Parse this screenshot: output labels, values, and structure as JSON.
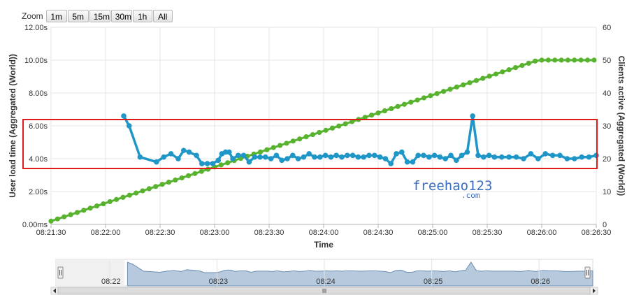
{
  "zoom": {
    "label": "Zoom",
    "buttons": [
      "1m",
      "5m",
      "15m",
      "30m",
      "1h",
      "All"
    ]
  },
  "watermark": {
    "line1": "freehao123",
    "line2": ".com"
  },
  "colors": {
    "load_time": "#1f96c8",
    "clients": "#57b22d",
    "highlight": "#e01b1b",
    "navigator_fill": "#b7c9dc",
    "navigator_line": "#6f8fb3"
  },
  "chart_data": {
    "type": "line",
    "xlabel": "Time",
    "x_ticks": [
      "08:21:30",
      "08:22:00",
      "08:22:30",
      "08:23:00",
      "08:23:30",
      "08:24:00",
      "08:24:30",
      "08:25:00",
      "08:25:30",
      "08:26:00",
      "08:26:30"
    ],
    "x_range": [
      "08:21:30",
      "08:26:30"
    ],
    "y_left": {
      "label": "User load time (Aggregated (World))",
      "ticks": [
        "0.00ms",
        "2.00s",
        "4.00s",
        "6.00s",
        "8.00s",
        "10.00s",
        "12.00s"
      ],
      "range": [
        0,
        12
      ]
    },
    "y_right": {
      "label": "Clients active (Aggregated (World))",
      "ticks": [
        "0",
        "10",
        "20",
        "30",
        "40",
        "50",
        "60"
      ],
      "range": [
        0,
        60
      ]
    },
    "grid": true,
    "series": [
      {
        "axis": "left",
        "x": [
          "08:22:10",
          "08:22:13",
          "08:22:19",
          "08:22:28",
          "08:22:32",
          "08:22:36",
          "08:22:40",
          "08:22:43",
          "08:22:46",
          "08:22:50",
          "08:22:53",
          "08:22:56",
          "08:22:59",
          "08:23:02",
          "08:23:04",
          "08:23:06",
          "08:23:08",
          "08:23:10",
          "08:23:13",
          "08:23:16",
          "08:23:19",
          "08:23:22",
          "08:23:25",
          "08:23:28",
          "08:23:31",
          "08:23:34",
          "08:23:37",
          "08:23:40",
          "08:23:43",
          "08:23:46",
          "08:23:49",
          "08:23:52",
          "08:23:55",
          "08:23:58",
          "08:24:01",
          "08:24:04",
          "08:24:07",
          "08:24:10",
          "08:24:13",
          "08:24:16",
          "08:24:19",
          "08:24:22",
          "08:24:25",
          "08:24:28",
          "08:24:31",
          "08:24:34",
          "08:24:37",
          "08:24:40",
          "08:24:43",
          "08:24:46",
          "08:24:49",
          "08:24:52",
          "08:24:55",
          "08:24:58",
          "08:25:01",
          "08:25:04",
          "08:25:07",
          "08:25:10",
          "08:25:13",
          "08:25:16",
          "08:25:19",
          "08:25:22",
          "08:25:25",
          "08:25:28",
          "08:25:31",
          "08:25:34",
          "08:25:38",
          "08:25:42",
          "08:25:46",
          "08:25:50",
          "08:25:54",
          "08:25:58",
          "08:26:02",
          "08:26:06",
          "08:26:10",
          "08:26:14",
          "08:26:18",
          "08:26:22",
          "08:26:26",
          "08:26:30"
        ],
        "values": [
          6.6,
          6.0,
          4.1,
          3.8,
          4.1,
          4.3,
          4.0,
          4.5,
          4.4,
          4.2,
          3.7,
          3.7,
          3.7,
          3.9,
          4.3,
          4.4,
          4.4,
          4.0,
          4.2,
          4.2,
          3.8,
          4.1,
          4.1,
          4.1,
          4.0,
          4.2,
          3.9,
          4.0,
          4.2,
          4.0,
          4.1,
          4.3,
          4.1,
          4.1,
          4.2,
          4.1,
          4.2,
          4.1,
          4.2,
          4.2,
          4.1,
          4.1,
          4.2,
          4.2,
          4.1,
          4.0,
          3.7,
          4.3,
          4.4,
          3.8,
          3.8,
          4.2,
          4.2,
          4.1,
          4.2,
          4.1,
          4.0,
          4.2,
          3.9,
          4.2,
          4.4,
          6.6,
          4.2,
          4.1,
          4.2,
          4.1,
          4.1,
          4.1,
          4.1,
          4.0,
          4.3,
          4.0,
          4.3,
          4.2,
          4.2,
          4.0,
          4.0,
          4.1,
          4.1,
          4.2
        ]
      },
      {
        "axis": "right",
        "x": [
          "08:21:30",
          "08:25:58",
          "08:26:30"
        ],
        "values": [
          1,
          50,
          50
        ]
      }
    ],
    "navigator": {
      "labels": [
        "08:22",
        "08:23",
        "08:24",
        "08:25",
        "08:26"
      ]
    }
  }
}
